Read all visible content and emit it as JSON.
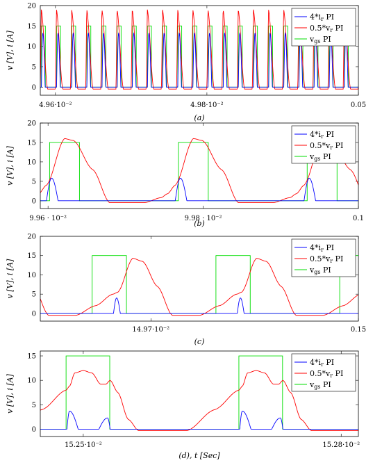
{
  "chart_data": [
    {
      "type": "line",
      "caption": "(a)",
      "ylabel": "v [V], i [A]",
      "xlim": [
        0.04958,
        0.05
      ],
      "ylim": [
        -2,
        20
      ],
      "yticks": [
        "0",
        "5",
        "10",
        "15",
        "20"
      ],
      "xticks": [
        {
          "x": 0.0496,
          "label": "4.96·10⁻²"
        },
        {
          "x": 0.0498,
          "label": "4.98·10⁻²"
        },
        {
          "x": 0.05,
          "label": "0.05"
        }
      ],
      "period": 2e-05,
      "gate": {
        "start": 1.5e-06,
        "width": 5.2e-06,
        "high": 15
      },
      "vr": {
        "peak": 19,
        "low": -0.5,
        "rise": [
          [
            0,
            0.2
          ],
          [
            0.07,
            19
          ]
        ],
        "fall": [
          [
            0.07,
            19
          ],
          [
            0.48,
            -0.5
          ],
          [
            1,
            -0.5
          ]
        ]
      },
      "ir": {
        "peak": 13.2,
        "start": 0.075,
        "mid": 0.17,
        "end": 0.32
      },
      "legend": [
        {
          "label": "4*i",
          "sub": "r",
          "suffix": " PI",
          "color": "#0000ff"
        },
        {
          "label": "0.5*v",
          "sub": "r",
          "suffix": " PI",
          "color": "#ff0000"
        },
        {
          "label": "v",
          "sub": "gs",
          "suffix": " PI",
          "color": "#00dd00"
        }
      ]
    },
    {
      "type": "line",
      "caption": "(b)",
      "ylabel": "v [V], i [A]",
      "xlim": [
        0.09959,
        0.1
      ],
      "ylim": [
        -2,
        20
      ],
      "yticks": [
        "0",
        "5",
        "10",
        "15",
        "20"
      ],
      "xticks": [
        {
          "x": 0.0996,
          "label": "9.96 · 10⁻²"
        },
        {
          "x": 0.0998,
          "label": "9.98 · 10⁻²"
        },
        {
          "x": 0.1,
          "label": "0.1"
        }
      ],
      "period": 0.000166,
      "offset": 0.099588,
      "gate": {
        "start": 1.4e-05,
        "width": 3.85e-05,
        "high": 15
      },
      "vr": {
        "rise": [
          [
            0,
            1.8
          ],
          [
            0.06,
            4
          ],
          [
            0.2,
            16
          ],
          [
            0.27,
            15.5
          ],
          [
            0.42,
            8
          ],
          [
            0.55,
            -0.5
          ]
        ],
        "fall": [
          [
            0.55,
            -0.5
          ],
          [
            0.82,
            -0.5
          ],
          [
            0.95,
            0.8
          ],
          [
            1,
            1.8
          ]
        ]
      },
      "ir": {
        "peak": 5.8,
        "start": 0.06,
        "mid": 0.1,
        "end": 0.15
      },
      "legend": [
        {
          "label": "4*i",
          "sub": "r",
          "suffix": " PI",
          "color": "#0000ff"
        },
        {
          "label": "0.5*v",
          "sub": "r",
          "suffix": " PI",
          "color": "#ff0000"
        },
        {
          "label": "v",
          "sub": "gs",
          "suffix": " PI",
          "color": "#00dd00"
        }
      ]
    },
    {
      "type": "line",
      "caption": "(c)",
      "ylabel": "v [V], i [A]",
      "xlim": [
        0.14954,
        0.15
      ],
      "ylim": [
        -2,
        20
      ],
      "yticks": [
        "0",
        "5",
        "10",
        "15",
        "20"
      ],
      "xticks": [
        {
          "x": 0.1497,
          "label": "14.97·10⁻²"
        },
        {
          "x": 0.15,
          "label": "0.15"
        }
      ],
      "period": 0.000179,
      "offset": 0.149645,
      "gate": {
        "start": -3e-05,
        "width": 4.96e-05,
        "high": 15
      },
      "vr": {
        "rise": [
          [
            0,
            5
          ],
          [
            0.04,
            5.5
          ],
          [
            0.16,
            14.3
          ],
          [
            0.24,
            13.5
          ],
          [
            0.36,
            7
          ],
          [
            0.48,
            -0.5
          ]
        ],
        "fall": [
          [
            0.48,
            -0.5
          ],
          [
            0.7,
            -0.5
          ],
          [
            0.86,
            2
          ],
          [
            1,
            5
          ]
        ]
      },
      "ir": {
        "peak": 4,
        "start": 0.005,
        "mid": 0.03,
        "end": 0.06
      },
      "legend": [
        {
          "label": "4*i",
          "sub": "r",
          "suffix": " PI",
          "color": "#0000ff"
        },
        {
          "label": "0.5*v",
          "sub": "r",
          "suffix": " PI",
          "color": "#ff0000"
        },
        {
          "label": "v",
          "sub": "gs",
          "suffix": " PI",
          "color": "#00dd00"
        }
      ]
    },
    {
      "type": "line",
      "caption": "(d), t [Sec]",
      "ylabel": "v [V], i [A]",
      "xlim": [
        0.15246,
        0.15283
      ],
      "ylim": [
        -1.5,
        16
      ],
      "yticks": [
        "0",
        "5",
        "10",
        "15"
      ],
      "xticks": [
        {
          "x": 0.15251,
          "label": "15.25·10⁻²"
        },
        {
          "x": 0.15281,
          "label": "15.28·10⁻²"
        }
      ],
      "period": 0.000201,
      "offset": 0.15249,
      "gate": {
        "start": 0,
        "width": 5.08e-05,
        "high": 15
      },
      "vr": {
        "rise": [
          [
            0,
            8
          ],
          [
            0.02,
            8.8
          ],
          [
            0.05,
            11.5
          ],
          [
            0.1,
            12
          ],
          [
            0.15,
            11.5
          ],
          [
            0.2,
            9.2
          ],
          [
            0.23,
            9.2
          ],
          [
            0.255,
            10
          ],
          [
            0.3,
            7.5
          ],
          [
            0.36,
            2
          ],
          [
            0.42,
            -0.3
          ]
        ],
        "fall": [
          [
            0.42,
            -0.3
          ],
          [
            0.7,
            -0.3
          ],
          [
            0.86,
            4
          ],
          [
            1,
            8
          ]
        ]
      },
      "ir": {
        "peak": 3.7,
        "start": 0.005,
        "mid": 0.02,
        "end": 0.07,
        "second": {
          "start": 0.19,
          "mid": 0.24,
          "end": 0.255,
          "peak": 2.3
        }
      },
      "legend": [
        {
          "label": "4*i",
          "sub": "r",
          "suffix": " PI",
          "color": "#0000ff"
        },
        {
          "label": "0.5*v",
          "sub": "r",
          "suffix": " PI",
          "color": "#ff0000"
        },
        {
          "label": "v",
          "sub": "gs",
          "suffix": " PI",
          "color": "#00dd00"
        }
      ]
    }
  ]
}
